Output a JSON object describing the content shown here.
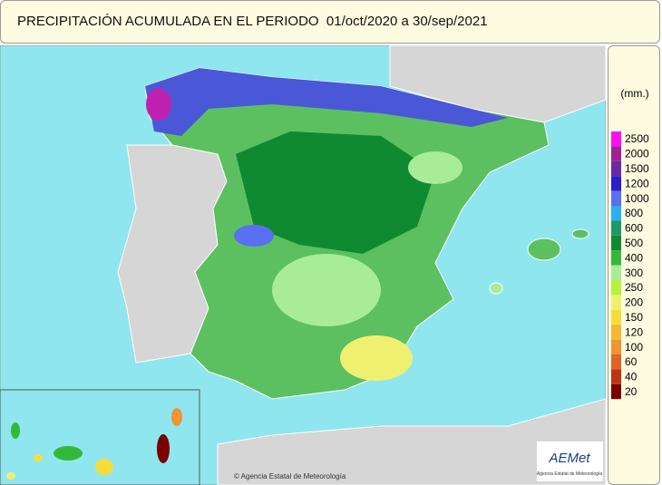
{
  "title": "PRECIPITACIÓN ACUMULADA EN EL PERIODO  01/oct/2020 a 30/sep/2021",
  "legend": {
    "unit": "(mm.)",
    "items": [
      {
        "label": "2500",
        "color": "#ff10f0"
      },
      {
        "label": "2000",
        "color": "#a0209a"
      },
      {
        "label": "1500",
        "color": "#6a2aa8"
      },
      {
        "label": "1200",
        "color": "#2c1ec8"
      },
      {
        "label": "1000",
        "color": "#5a70f0"
      },
      {
        "label": "800",
        "color": "#28b0f0"
      },
      {
        "label": "600",
        "color": "#1a9a6a"
      },
      {
        "label": "500",
        "color": "#108a30"
      },
      {
        "label": "400",
        "color": "#34b83a"
      },
      {
        "label": "300",
        "color": "#a8ec98"
      },
      {
        "label": "250",
        "color": "#b8f040"
      },
      {
        "label": "200",
        "color": "#f0f070"
      },
      {
        "label": "150",
        "color": "#f8dc3c"
      },
      {
        "label": "120",
        "color": "#f4b838"
      },
      {
        "label": "100",
        "color": "#f09434"
      },
      {
        "label": "60",
        "color": "#e06424"
      },
      {
        "label": "40",
        "color": "#c03414"
      },
      {
        "label": "20",
        "color": "#7a0000"
      }
    ]
  },
  "credit": "© Agencia Estatal de Meteorología",
  "logo": {
    "name": "AEMet",
    "subtitle": "Agencia Estatal de Meteorología"
  }
}
